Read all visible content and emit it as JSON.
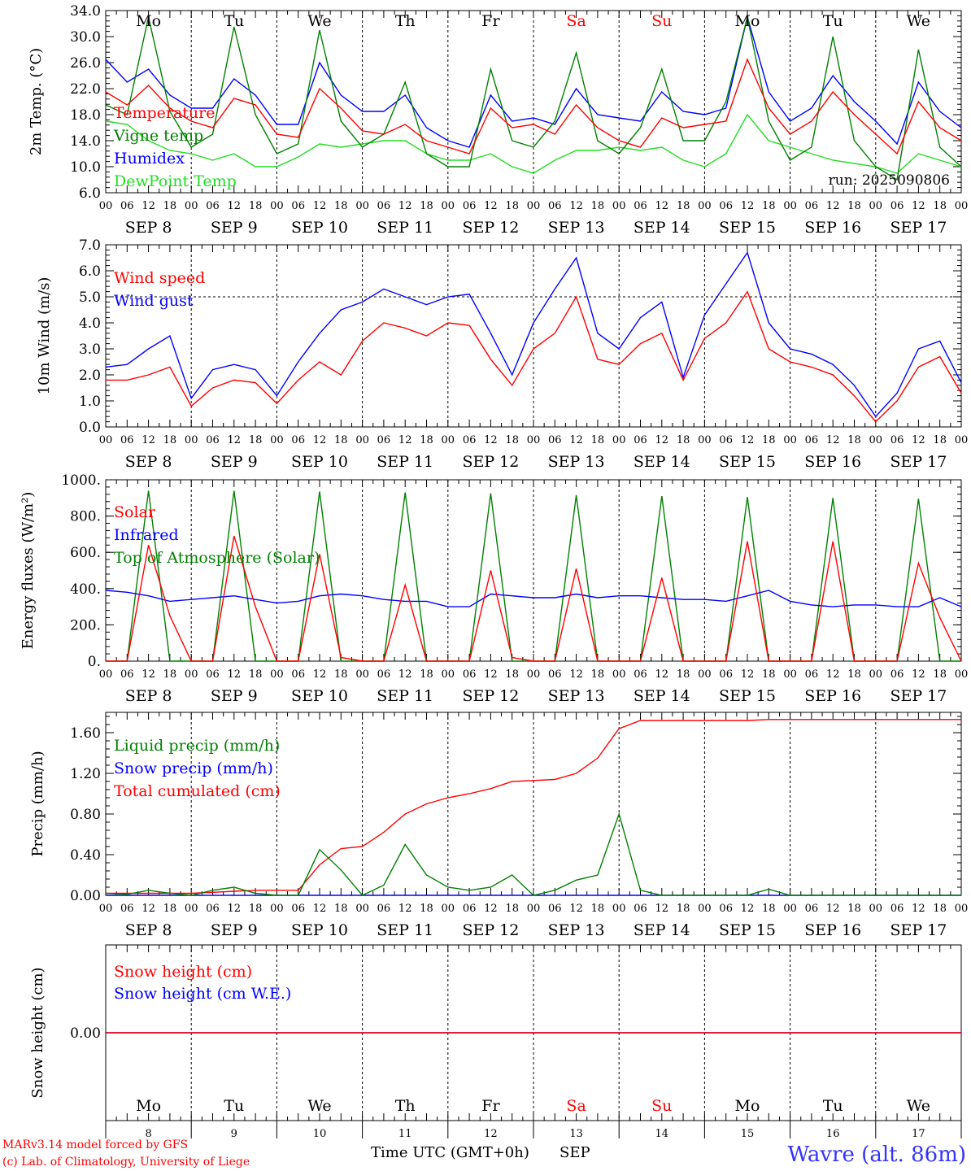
{
  "run_label": "run: 2025090806",
  "footer": {
    "model_line": "MARv3.14 model forced by GFS",
    "credit_line": "(c) Lab. of Climatology, University of Liege",
    "axis_title": "Time UTC (GMT+0h)",
    "month": "SEP",
    "station": "Wavre (alt. 86m)"
  },
  "colors": {
    "red": "#ff0000",
    "blue": "#0000ff",
    "green": "#008000",
    "lightgreen": "#22dd22",
    "station": "#3333ff"
  },
  "days": {
    "weekdays": [
      "Mo",
      "Tu",
      "We",
      "Th",
      "Fr",
      "Sa",
      "Su",
      "Mo",
      "Tu",
      "We"
    ],
    "weekend_index": [
      5,
      6
    ],
    "dates": [
      "SEP  8",
      "SEP  9",
      "SEP 10",
      "SEP 11",
      "SEP 12",
      "SEP 13",
      "SEP 14",
      "SEP 15",
      "SEP 16",
      "SEP 17"
    ],
    "day_numbers": [
      "8",
      "9",
      "10",
      "11",
      "12",
      "13",
      "14",
      "15",
      "16",
      "17"
    ],
    "hour_ticks": [
      "00",
      "06",
      "12",
      "18"
    ],
    "final_tick": "00"
  },
  "chart_data": [
    {
      "type": "line",
      "ylabel": "2m Temp. (°C)",
      "ylim": [
        6,
        34
      ],
      "yticks": [
        "6.0",
        "10.0",
        "14.0",
        "18.0",
        "22.0",
        "26.0",
        "30.0",
        "34.0"
      ],
      "x_hours": [
        0,
        6,
        12,
        18,
        24,
        30,
        36,
        42,
        48,
        54,
        60,
        66,
        72,
        78,
        84,
        90,
        96,
        102,
        108,
        114,
        120,
        126,
        132,
        138,
        144,
        150,
        156,
        162,
        168,
        174,
        180,
        186,
        192,
        198,
        204,
        210,
        216,
        222,
        228,
        234,
        240
      ],
      "series": [
        {
          "name": "Temperature",
          "color": "red",
          "values": [
            21.5,
            19.5,
            22.5,
            19,
            17,
            16,
            20.5,
            19.5,
            15,
            14.5,
            22,
            19,
            15.5,
            15,
            16.5,
            14,
            13,
            12,
            19,
            16,
            16.5,
            15,
            19.5,
            16,
            14,
            13,
            17.5,
            16,
            16.5,
            17,
            26.5,
            19,
            15,
            17,
            21.5,
            18,
            15,
            12,
            20,
            16,
            14
          ]
        },
        {
          "name": "Vigne temp",
          "color": "green",
          "values": [
            19.5,
            18,
            33,
            18.5,
            13,
            15,
            31.5,
            18,
            12,
            13.5,
            31,
            17,
            13,
            15,
            23,
            12,
            10,
            10,
            25,
            14,
            13,
            17,
            27.5,
            14,
            12,
            16,
            25,
            14,
            14,
            20,
            33,
            17,
            11,
            13,
            30,
            14,
            10,
            8,
            28,
            13,
            10
          ]
        },
        {
          "name": "Humidex",
          "color": "blue",
          "values": [
            26.5,
            23,
            25,
            21,
            19,
            19,
            23.5,
            21,
            16.5,
            16.5,
            26,
            21,
            18.5,
            18.5,
            21,
            16,
            14,
            13,
            21,
            17,
            17.5,
            16.5,
            22,
            18,
            17.5,
            17,
            21.5,
            18.5,
            18,
            19,
            33,
            21.5,
            17,
            19,
            24,
            20,
            17,
            13.5,
            23,
            18.5,
            16
          ]
        },
        {
          "name": "DewPoint Temp",
          "color": "lightgreen",
          "values": [
            17,
            16.5,
            14,
            12.5,
            12,
            11,
            12,
            10,
            10,
            11.5,
            13.5,
            13,
            13.5,
            14,
            14,
            12,
            11,
            11,
            12,
            10,
            9,
            11,
            12.5,
            12.5,
            13,
            12.5,
            13,
            11,
            10,
            12,
            18,
            14,
            13,
            12,
            11,
            10.5,
            10,
            9,
            12,
            11,
            10
          ]
        }
      ]
    },
    {
      "type": "line",
      "ylabel": "10m Wind (m/s)",
      "ylim": [
        0,
        7
      ],
      "yticks": [
        "0.0",
        "1.0",
        "2.0",
        "3.0",
        "4.0",
        "5.0",
        "6.0",
        "7.0"
      ],
      "reference_line": 5,
      "x_hours": [
        0,
        6,
        12,
        18,
        24,
        30,
        36,
        42,
        48,
        54,
        60,
        66,
        72,
        78,
        84,
        90,
        96,
        102,
        108,
        114,
        120,
        126,
        132,
        138,
        144,
        150,
        156,
        162,
        168,
        174,
        180,
        186,
        192,
        198,
        204,
        210,
        216,
        222,
        228,
        234,
        240
      ],
      "series": [
        {
          "name": "Wind speed",
          "color": "red",
          "values": [
            1.8,
            1.8,
            2.0,
            2.3,
            0.8,
            1.5,
            1.8,
            1.7,
            0.9,
            1.8,
            2.5,
            2.0,
            3.3,
            4.0,
            3.8,
            3.5,
            4.0,
            3.9,
            2.6,
            1.6,
            3.0,
            3.6,
            5.0,
            2.6,
            2.4,
            3.2,
            3.6,
            1.8,
            3.4,
            4.0,
            5.2,
            3.0,
            2.5,
            2.3,
            2.0,
            1.2,
            0.2,
            1.0,
            2.3,
            2.7,
            1.3
          ]
        },
        {
          "name": "Wind gust",
          "color": "blue",
          "values": [
            2.3,
            2.4,
            3.0,
            3.5,
            1.1,
            2.2,
            2.4,
            2.2,
            1.2,
            2.5,
            3.6,
            4.5,
            4.8,
            5.3,
            5.0,
            4.7,
            5.0,
            5.1,
            3.6,
            2.0,
            4.0,
            5.3,
            6.5,
            3.6,
            3.0,
            4.2,
            4.8,
            1.9,
            4.3,
            5.5,
            6.7,
            4.0,
            3.0,
            2.8,
            2.4,
            1.6,
            0.4,
            1.3,
            3.0,
            3.3,
            1.7
          ]
        }
      ]
    },
    {
      "type": "line",
      "ylabel": "Energy fluxes (W/m²)",
      "ylim": [
        0,
        1000
      ],
      "yticks": [
        "0.",
        "200.",
        "400.",
        "600.",
        "800.",
        "1000."
      ],
      "x_hours": [
        0,
        6,
        12,
        18,
        24,
        30,
        36,
        42,
        48,
        54,
        60,
        66,
        72,
        78,
        84,
        90,
        96,
        102,
        108,
        114,
        120,
        126,
        132,
        138,
        144,
        150,
        156,
        162,
        168,
        174,
        180,
        186,
        192,
        198,
        204,
        210,
        216,
        222,
        228,
        234,
        240
      ],
      "series": [
        {
          "name": "Solar",
          "color": "red",
          "values": [
            0,
            0,
            640,
            250,
            0,
            0,
            690,
            300,
            0,
            0,
            590,
            20,
            0,
            0,
            420,
            0,
            0,
            0,
            500,
            20,
            0,
            0,
            510,
            0,
            0,
            0,
            460,
            0,
            0,
            0,
            660,
            0,
            0,
            0,
            660,
            0,
            0,
            0,
            540,
            240,
            0
          ]
        },
        {
          "name": "Infrared",
          "color": "blue",
          "values": [
            390,
            380,
            360,
            330,
            340,
            350,
            360,
            340,
            320,
            330,
            360,
            370,
            360,
            340,
            330,
            330,
            300,
            300,
            370,
            360,
            350,
            350,
            370,
            350,
            360,
            360,
            350,
            340,
            340,
            330,
            360,
            390,
            330,
            310,
            300,
            310,
            310,
            300,
            300,
            350,
            300
          ]
        },
        {
          "name": "Top of Atmosphere (Solar)",
          "color": "green",
          "values": [
            0,
            0,
            940,
            0,
            0,
            0,
            940,
            0,
            0,
            0,
            935,
            0,
            0,
            0,
            930,
            0,
            0,
            0,
            925,
            0,
            0,
            0,
            915,
            0,
            0,
            0,
            910,
            0,
            0,
            0,
            905,
            0,
            0,
            0,
            900,
            0,
            0,
            0,
            895,
            0,
            0
          ]
        }
      ]
    },
    {
      "type": "line",
      "ylabel": "Precip (mm/h)",
      "ylim": [
        0,
        1.8
      ],
      "yticks": [
        "0.00",
        "0.40",
        "0.80",
        "1.20",
        "1.60"
      ],
      "x_hours": [
        0,
        6,
        12,
        18,
        24,
        30,
        36,
        42,
        48,
        54,
        60,
        66,
        72,
        78,
        84,
        90,
        96,
        102,
        108,
        114,
        120,
        126,
        132,
        138,
        144,
        150,
        156,
        162,
        168,
        174,
        180,
        186,
        192,
        198,
        204,
        210,
        216,
        222,
        228,
        234,
        240
      ],
      "series": [
        {
          "name": "Liquid precip (mm/h)",
          "color": "green",
          "values": [
            0.02,
            0.01,
            0.05,
            0.02,
            0.0,
            0.05,
            0.08,
            0.02,
            0.0,
            0.0,
            0.45,
            0.25,
            0.0,
            0.1,
            0.5,
            0.2,
            0.08,
            0.05,
            0.08,
            0.2,
            0.0,
            0.05,
            0.15,
            0.2,
            0.8,
            0.05,
            0.0,
            0.0,
            0.0,
            0.0,
            0.0,
            0.06,
            0.0,
            0.0,
            0.0,
            0.0,
            0.0,
            0.0,
            0.0,
            0.0,
            0.0
          ]
        },
        {
          "name": "Snow precip (mm/h)",
          "color": "blue",
          "values": [
            0,
            0,
            0,
            0,
            0,
            0,
            0,
            0,
            0,
            0,
            0,
            0,
            0,
            0,
            0,
            0,
            0,
            0,
            0,
            0,
            0,
            0,
            0,
            0,
            0,
            0,
            0,
            0,
            0,
            0,
            0,
            0,
            0,
            0,
            0,
            0,
            0,
            0,
            0,
            0,
            0
          ]
        },
        {
          "name": "Total cumulated (cm)",
          "color": "red",
          "values": [
            0.02,
            0.02,
            0.02,
            0.02,
            0.02,
            0.03,
            0.04,
            0.05,
            0.05,
            0.05,
            0.3,
            0.46,
            0.48,
            0.62,
            0.8,
            0.9,
            0.96,
            1.0,
            1.05,
            1.12,
            1.13,
            1.14,
            1.2,
            1.35,
            1.64,
            1.72,
            1.72,
            1.72,
            1.72,
            1.72,
            1.72,
            1.73,
            1.73,
            1.73,
            1.73,
            1.73,
            1.73,
            1.73,
            1.73,
            1.73,
            1.73
          ]
        }
      ]
    },
    {
      "type": "line",
      "ylabel": "Snow height (cm)",
      "ylim": [
        -1,
        1
      ],
      "yticks": [
        "0.00"
      ],
      "x_hours": [
        0,
        240
      ],
      "series": [
        {
          "name": "Snow height (cm)",
          "color": "red",
          "values": [
            0,
            0
          ]
        },
        {
          "name": "Snow height (cm W.E.)",
          "color": "blue",
          "values": [
            0,
            0
          ]
        }
      ]
    }
  ]
}
